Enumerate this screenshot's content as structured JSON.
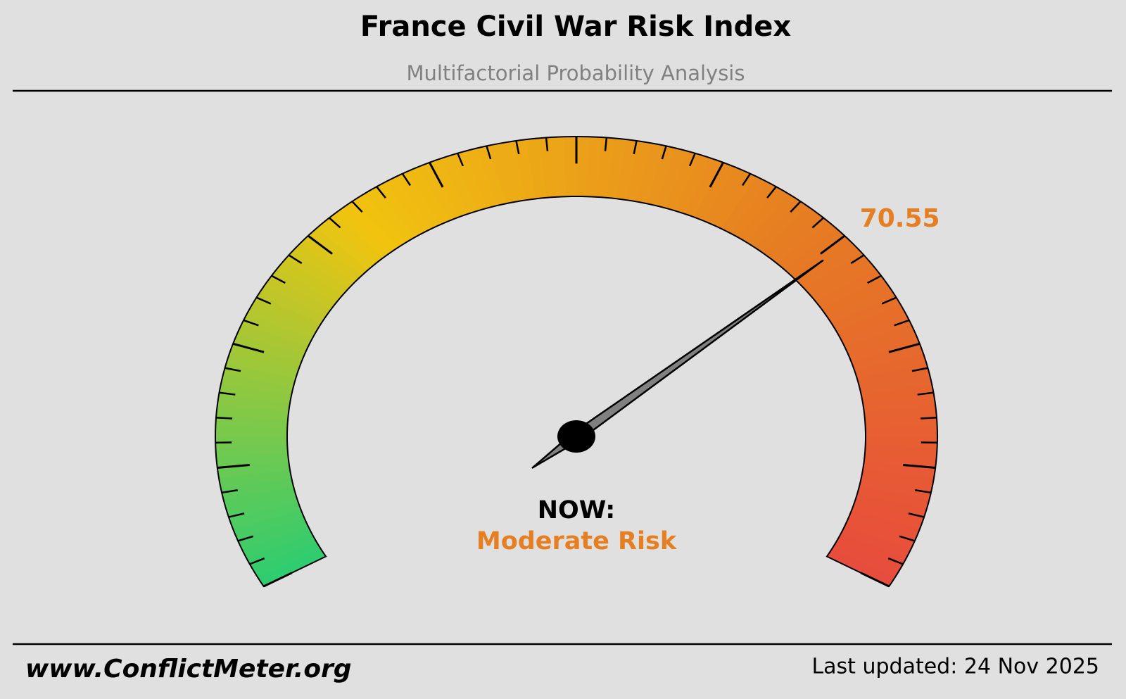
{
  "title": "France Civil War Risk Index",
  "subtitle": "Multifactorial Probability Analysis",
  "chart_data": {
    "type": "gauge",
    "value": 70.55,
    "value_color": "#e67e22",
    "ylim": [
      0,
      100
    ],
    "yticks": [
      0,
      10,
      20,
      30,
      40,
      50,
      60,
      70,
      80,
      90,
      100
    ],
    "minor_ticks": [
      2,
      4,
      6,
      8,
      12,
      14,
      16,
      18,
      22,
      24,
      26,
      28,
      32,
      34,
      36,
      38,
      42,
      44,
      46,
      48,
      52,
      54,
      56,
      58,
      62,
      64,
      66,
      68,
      72,
      74,
      76,
      78,
      82,
      84,
      86,
      88,
      92,
      94,
      96,
      98
    ],
    "colors": [
      "#2ecc71",
      "#f1c40f",
      "#e67e22",
      "#e74c3c"
    ],
    "status_label": "NOW:",
    "status": "Moderate Risk"
  },
  "footer": {
    "website": "www.ConflictMeter.org",
    "updated": "Last updated: 24 Nov 2025"
  }
}
